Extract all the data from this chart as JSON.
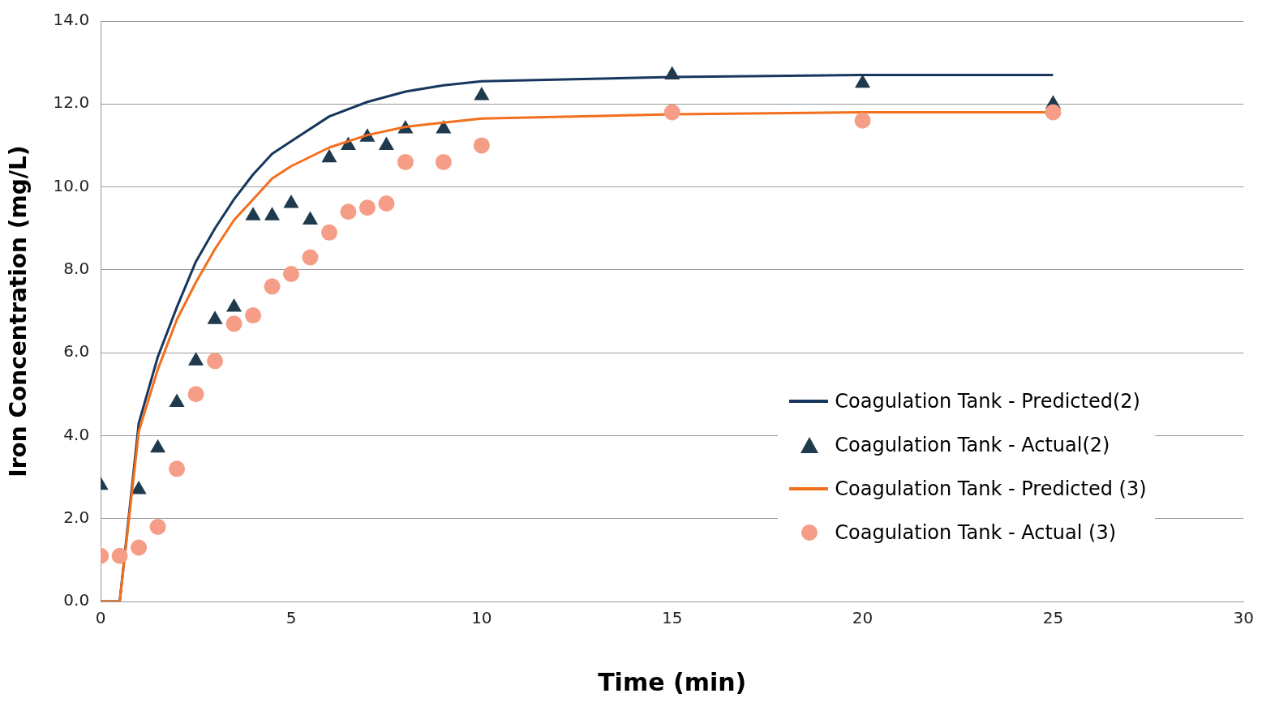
{
  "chart_data": {
    "type": "line",
    "xlabel": "Time (min)",
    "ylabel": "Iron Concentration (mg/L)",
    "xlim": [
      0,
      30
    ],
    "xticks": [
      0,
      5,
      10,
      15,
      20,
      25,
      30
    ],
    "ylim": [
      0,
      14
    ],
    "yticks": [
      {
        "value": 0,
        "label": "0.0"
      },
      {
        "value": 2,
        "label": "2.0"
      },
      {
        "value": 4,
        "label": "4.0"
      },
      {
        "value": 6,
        "label": "6.0"
      },
      {
        "value": 8,
        "label": "8.0"
      },
      {
        "value": 10,
        "label": "10.0"
      },
      {
        "value": 12,
        "label": "12.0"
      },
      {
        "value": 14,
        "label": "14.0"
      }
    ],
    "grid": "y",
    "legend": "bottom right",
    "series": [
      {
        "name": "Coagulation Tank - Predicted(2)",
        "type": "line",
        "color": "#17375e",
        "marker": "none",
        "line_style": "solid",
        "x": [
          0,
          0.5,
          1,
          1.5,
          2,
          2.5,
          3,
          3.5,
          4,
          4.5,
          5,
          6,
          7,
          8,
          9,
          10,
          15,
          20,
          25
        ],
        "values": [
          0,
          0,
          4.3,
          5.9,
          7.1,
          8.2,
          9,
          9.7,
          10.3,
          10.8,
          11.1,
          11.7,
          12.05,
          12.3,
          12.45,
          12.55,
          12.65,
          12.7,
          12.7
        ]
      },
      {
        "name": "Coagulation Tank - Actual(2)",
        "type": "scatter",
        "color": "#1f3a4d",
        "marker": "triangle",
        "x": [
          0,
          1,
          1.5,
          2,
          2.5,
          3,
          3.5,
          4,
          4.5,
          5,
          5.5,
          6,
          6.5,
          7,
          7.5,
          8,
          9,
          10,
          15,
          20,
          25
        ],
        "values": [
          2.8,
          2.7,
          3.7,
          4.8,
          5.8,
          6.8,
          7.1,
          9.3,
          9.3,
          9.6,
          9.2,
          10.7,
          11,
          11.2,
          11,
          11.4,
          11.4,
          12.2,
          12.7,
          12.5,
          12
        ]
      },
      {
        "name": "Coagulation Tank - Predicted (3)",
        "type": "line",
        "color": "#f36f1e",
        "marker": "none",
        "line_style": "solid",
        "x": [
          0,
          0.5,
          1,
          1.5,
          2,
          2.5,
          3,
          3.5,
          4,
          4.5,
          5,
          6,
          7,
          8,
          9,
          10,
          15,
          20,
          25
        ],
        "values": [
          0,
          0,
          4.1,
          5.6,
          6.8,
          7.7,
          8.5,
          9.2,
          9.7,
          10.2,
          10.5,
          10.95,
          11.25,
          11.45,
          11.55,
          11.65,
          11.75,
          11.8,
          11.8
        ]
      },
      {
        "name": "Coagulation Tank - Actual (3)",
        "type": "scatter",
        "color": "#f59d86",
        "marker": "circle",
        "x": [
          0,
          0.5,
          1,
          1.5,
          2,
          2.5,
          3,
          3.5,
          4,
          4.5,
          5,
          5.5,
          6,
          6.5,
          7,
          7.5,
          8,
          9,
          10,
          15,
          20,
          25
        ],
        "values": [
          1.1,
          1.1,
          1.3,
          1.8,
          3.2,
          5,
          5.8,
          6.7,
          6.9,
          7.6,
          7.9,
          8.3,
          8.9,
          9.4,
          9.5,
          9.6,
          10.6,
          10.6,
          11,
          11.8,
          11.6,
          11.8
        ]
      }
    ]
  }
}
